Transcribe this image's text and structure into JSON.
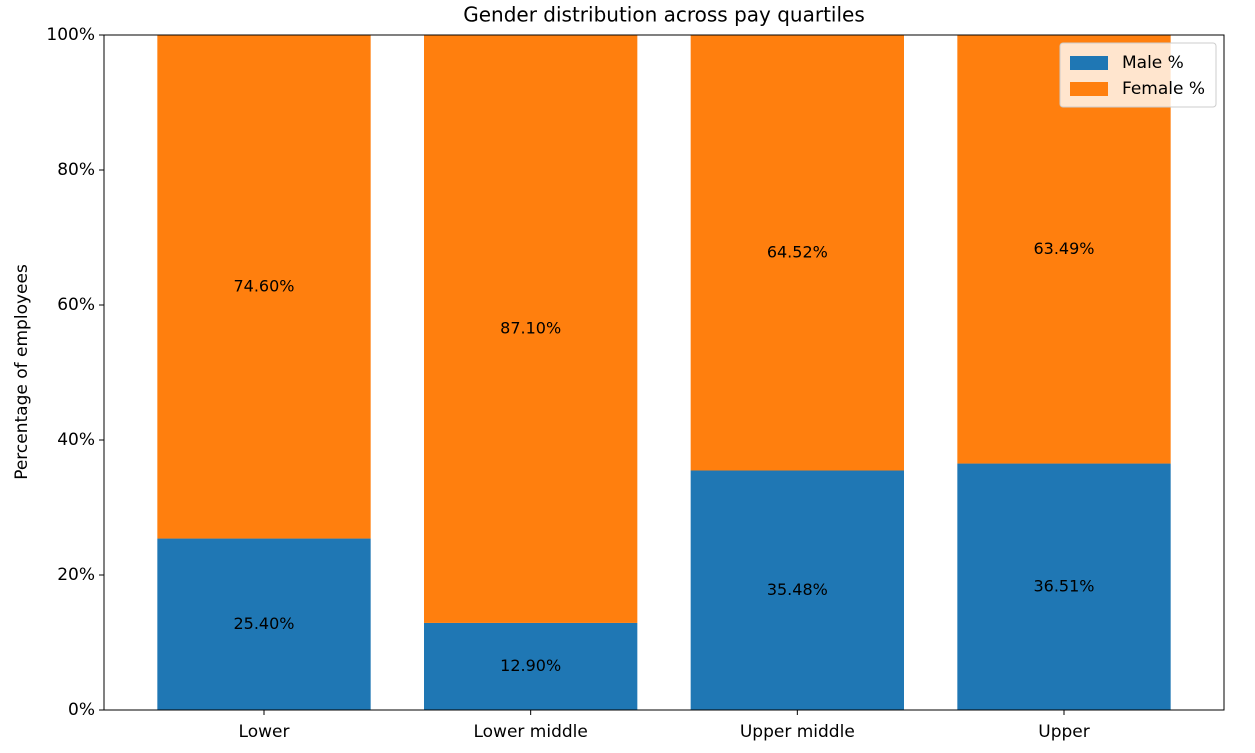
{
  "chart_data": {
    "type": "stacked_bar",
    "title": "Gender distribution across pay quartiles",
    "y_label": "Percentage of employees",
    "categories": [
      "Lower",
      "Lower middle",
      "Upper middle",
      "Upper"
    ],
    "series": [
      {
        "name": "Male %",
        "color": "#1f77b4",
        "values": [
          25.4,
          12.9,
          35.48,
          36.51
        ],
        "value_labels": [
          "25.40%",
          "12.90%",
          "35.48%",
          "36.51%"
        ]
      },
      {
        "name": "Female %",
        "color": "#ff7f0e",
        "values": [
          74.6,
          87.1,
          64.52,
          63.49
        ],
        "value_labels": [
          "74.60%",
          "87.10%",
          "64.52%",
          "63.49%"
        ]
      }
    ],
    "ylim": [
      0,
      100
    ],
    "yticks": [
      {
        "value": 0,
        "label": "0%"
      },
      {
        "value": 20,
        "label": "20%"
      },
      {
        "value": 40,
        "label": "40%"
      },
      {
        "value": 60,
        "label": "60%"
      },
      {
        "value": 80,
        "label": "80%"
      },
      {
        "value": 100,
        "label": "100%"
      }
    ],
    "legend": "upper right"
  }
}
